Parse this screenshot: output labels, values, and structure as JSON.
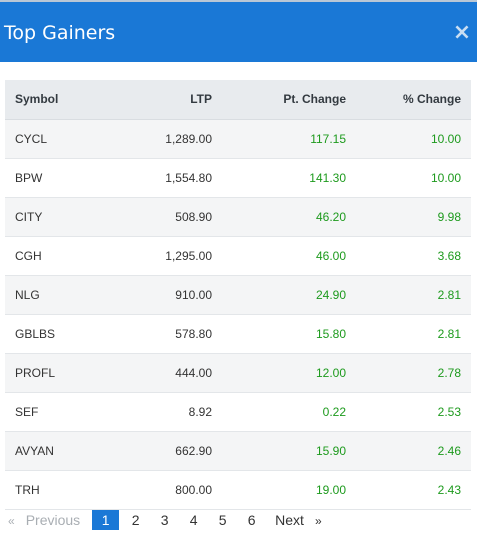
{
  "panel": {
    "title": "Top Gainers",
    "close_icon": "close-icon"
  },
  "table": {
    "columns": [
      "Symbol",
      "LTP",
      "Pt. Change",
      "% Change"
    ],
    "rows": [
      {
        "symbol": "CYCL",
        "ltp": "1,289.00",
        "pt_change": "117.15",
        "pct_change": "10.00"
      },
      {
        "symbol": "BPW",
        "ltp": "1,554.80",
        "pt_change": "141.30",
        "pct_change": "10.00"
      },
      {
        "symbol": "CITY",
        "ltp": "508.90",
        "pt_change": "46.20",
        "pct_change": "9.98"
      },
      {
        "symbol": "CGH",
        "ltp": "1,295.00",
        "pt_change": "46.00",
        "pct_change": "3.68"
      },
      {
        "symbol": "NLG",
        "ltp": "910.00",
        "pt_change": "24.90",
        "pct_change": "2.81"
      },
      {
        "symbol": "GBLBS",
        "ltp": "578.80",
        "pt_change": "15.80",
        "pct_change": "2.81"
      },
      {
        "symbol": "PROFL",
        "ltp": "444.00",
        "pt_change": "12.00",
        "pct_change": "2.78"
      },
      {
        "symbol": "SEF",
        "ltp": "8.92",
        "pt_change": "0.22",
        "pct_change": "2.53"
      },
      {
        "symbol": "AVYAN",
        "ltp": "662.90",
        "pt_change": "15.90",
        "pct_change": "2.46"
      },
      {
        "symbol": "TRH",
        "ltp": "800.00",
        "pt_change": "19.00",
        "pct_change": "2.43"
      }
    ]
  },
  "pagination": {
    "prev_arrow": "«",
    "prev_label": "Previous",
    "pages": [
      "1",
      "2",
      "3",
      "4",
      "5",
      "6"
    ],
    "active_page": "1",
    "next_label": "Next",
    "next_arrow": "»"
  },
  "colors": {
    "header_bg": "#1a78d6",
    "positive": "#1d9a1d",
    "active_page_bg": "#1a78d6"
  }
}
